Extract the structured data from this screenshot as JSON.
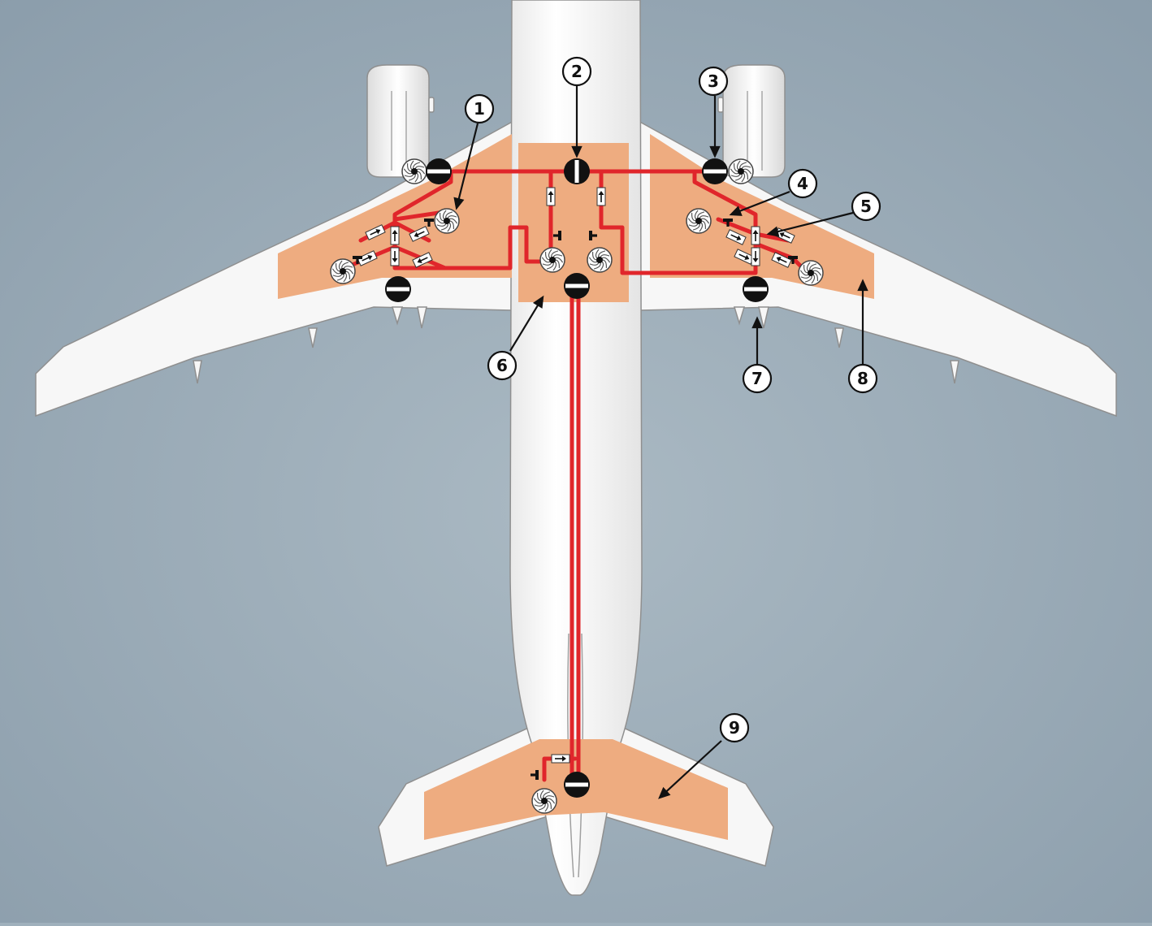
{
  "colors": {
    "background_center": "#aab9c3",
    "background_edge": "#8b9dab",
    "airframe": "#f7f7f7",
    "airframe_outline": "#8f8f8f",
    "tank": "#eeac80",
    "fuel_line": "#e0262b",
    "component": "#111111",
    "callout_fill": "#ffffff",
    "callout_stroke": "#111111"
  },
  "icons": {
    "pump": "turbine-pump-icon",
    "valve": "shutoff-valve-icon",
    "check_valve": "check-valve-icon",
    "cap": "t-cap-icon"
  },
  "callouts": [
    {
      "id": "1",
      "label": "1"
    },
    {
      "id": "2",
      "label": "2"
    },
    {
      "id": "3",
      "label": "3"
    },
    {
      "id": "4",
      "label": "4"
    },
    {
      "id": "5",
      "label": "5"
    },
    {
      "id": "6",
      "label": "6"
    },
    {
      "id": "7",
      "label": "7"
    },
    {
      "id": "8",
      "label": "8"
    },
    {
      "id": "9",
      "label": "9"
    }
  ]
}
